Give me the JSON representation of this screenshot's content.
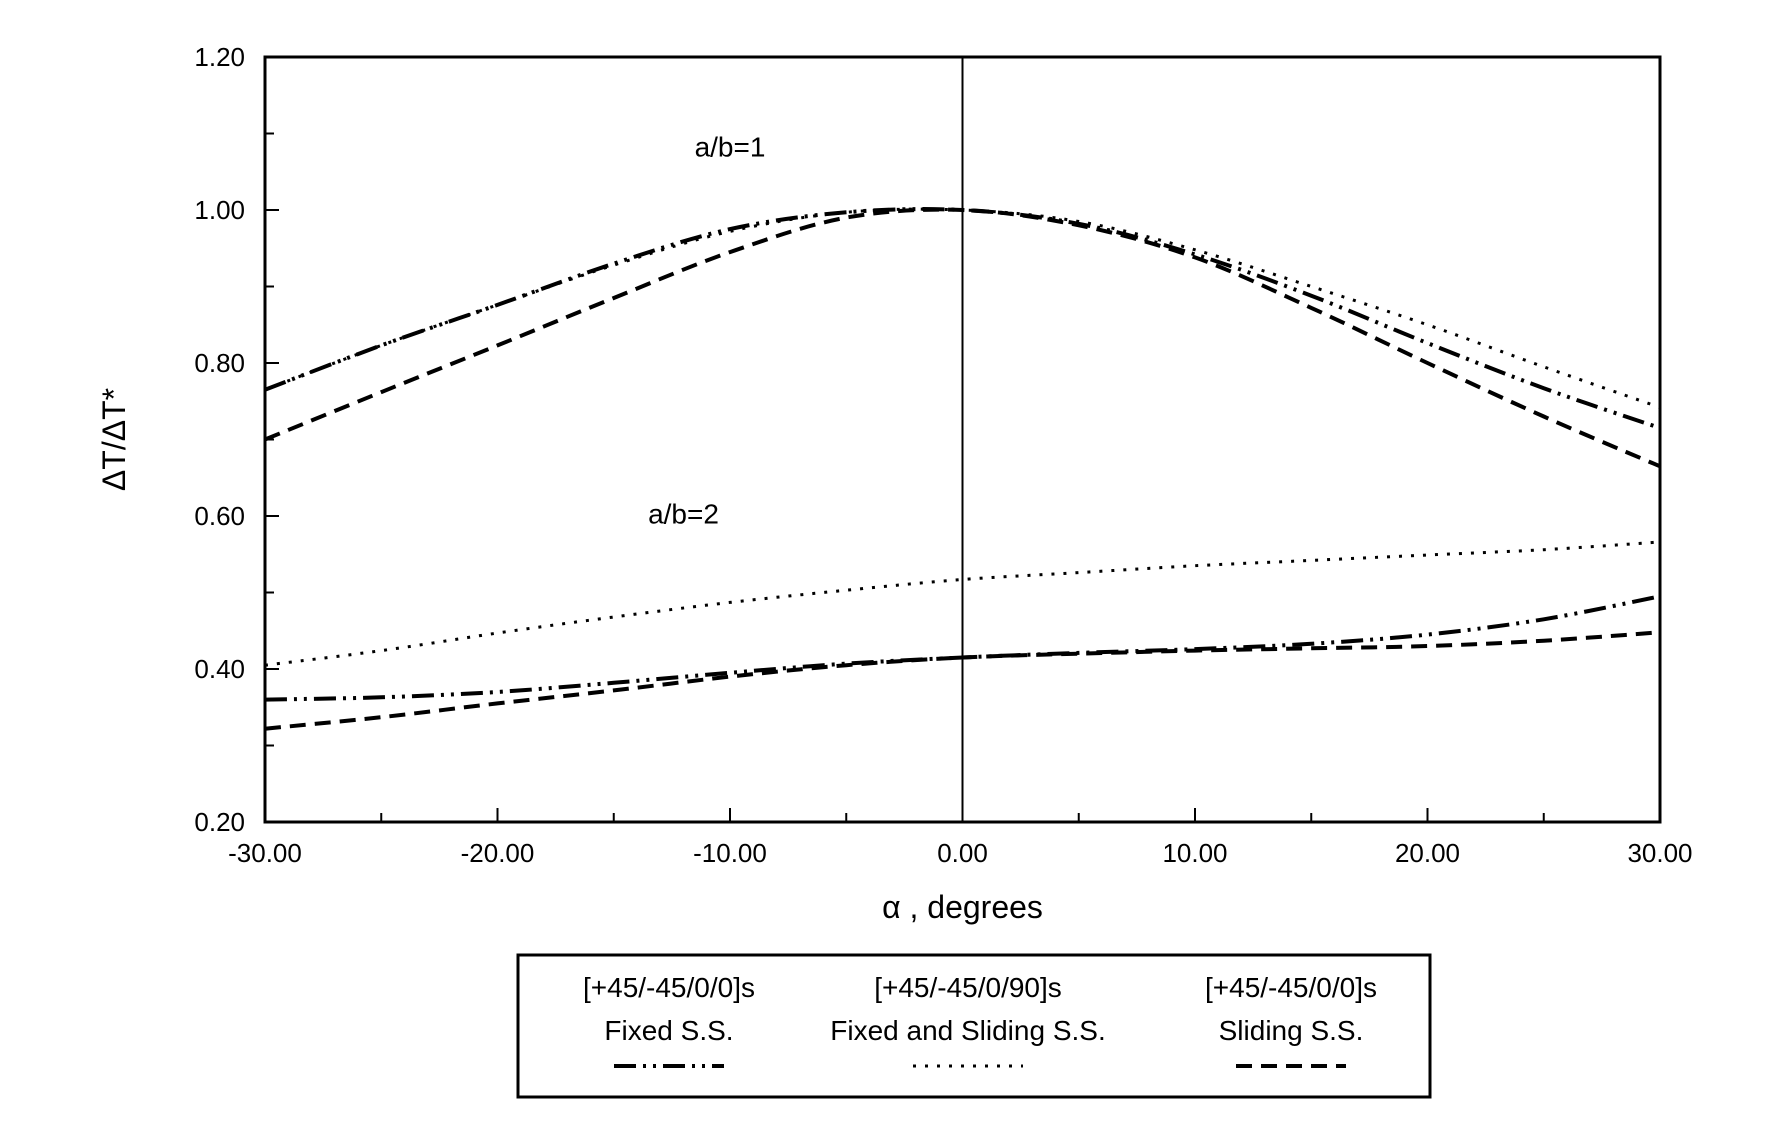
{
  "chart_data": {
    "type": "line",
    "xlabel": "α , degrees",
    "ylabel": "ΔT/ΔT*",
    "xlim": [
      -30,
      30
    ],
    "ylim": [
      0.2,
      1.2
    ],
    "x_ticks": [
      "-30.00",
      "-20.00",
      "-10.00",
      "0.00",
      "10.00",
      "20.00",
      "30.00"
    ],
    "y_ticks": [
      "0.20",
      "0.40",
      "0.60",
      "0.80",
      "1.00",
      "1.20"
    ],
    "grid": false,
    "vertical_reference_line_x": 0,
    "annotations": [
      {
        "text": "a/b=1",
        "x": -10,
        "y": 1.07
      },
      {
        "text": "a/b=2",
        "x": -12,
        "y": 0.59
      }
    ],
    "legend": {
      "placement": "bottom-center",
      "entries": [
        {
          "line1": "[+45/-45/0/0]s",
          "line2": "Fixed S.S.",
          "style": "dash-dot-dot"
        },
        {
          "line1": "[+45/-45/0/90]s",
          "line2": "Fixed and Sliding S.S.",
          "style": "dotted"
        },
        {
          "line1": "[+45/-45/0/0]s",
          "line2": "Sliding S.S.",
          "style": "dashed"
        }
      ]
    },
    "x": [
      -30,
      -25,
      -20,
      -15,
      -10,
      -5,
      0,
      5,
      10,
      15,
      20,
      25,
      30
    ],
    "series": [
      {
        "group": "a/b=1",
        "style": "dash-dot-dot",
        "values": [
          0.765,
          0.823,
          0.876,
          0.93,
          0.975,
          0.997,
          1.0,
          0.982,
          0.942,
          0.888,
          0.826,
          0.767,
          0.715
        ]
      },
      {
        "group": "a/b=1",
        "style": "dotted",
        "values": [
          0.765,
          0.823,
          0.876,
          0.928,
          0.972,
          0.997,
          1.0,
          0.985,
          0.948,
          0.9,
          0.85,
          0.795,
          0.742
        ]
      },
      {
        "group": "a/b=1",
        "style": "dashed",
        "values": [
          0.7,
          0.762,
          0.823,
          0.885,
          0.945,
          0.99,
          1.0,
          0.98,
          0.938,
          0.872,
          0.8,
          0.73,
          0.665
        ]
      },
      {
        "group": "a/b=2",
        "style": "dash-dot-dot",
        "values": [
          0.36,
          0.363,
          0.37,
          0.382,
          0.395,
          0.407,
          0.415,
          0.421,
          0.426,
          0.433,
          0.445,
          0.465,
          0.495
        ]
      },
      {
        "group": "a/b=2",
        "style": "dotted",
        "values": [
          0.405,
          0.424,
          0.447,
          0.468,
          0.487,
          0.503,
          0.517,
          0.526,
          0.535,
          0.542,
          0.549,
          0.556,
          0.566
        ]
      },
      {
        "group": "a/b=2",
        "style": "dashed",
        "values": [
          0.322,
          0.337,
          0.355,
          0.372,
          0.39,
          0.405,
          0.415,
          0.42,
          0.424,
          0.427,
          0.43,
          0.437,
          0.448
        ]
      }
    ]
  }
}
